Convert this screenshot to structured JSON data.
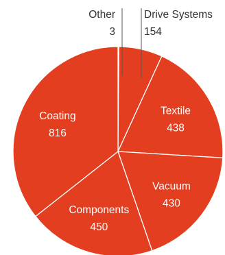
{
  "chart_data": {
    "type": "pie",
    "title": "",
    "start_angle_deg": 0,
    "direction": "clockwise",
    "colors": {
      "slice": "#E23E1F",
      "border": "#ffffff",
      "outside_text": "#333333",
      "inside_text": "#ffffff"
    },
    "slices": [
      {
        "label": "Other",
        "value": 3
      },
      {
        "label": "Drive Systems",
        "value": 154
      },
      {
        "label": "Textile",
        "value": 438
      },
      {
        "label": "Vacuum",
        "value": 430
      },
      {
        "label": "Components",
        "value": 450
      },
      {
        "label": "Coating",
        "value": 816
      }
    ]
  }
}
